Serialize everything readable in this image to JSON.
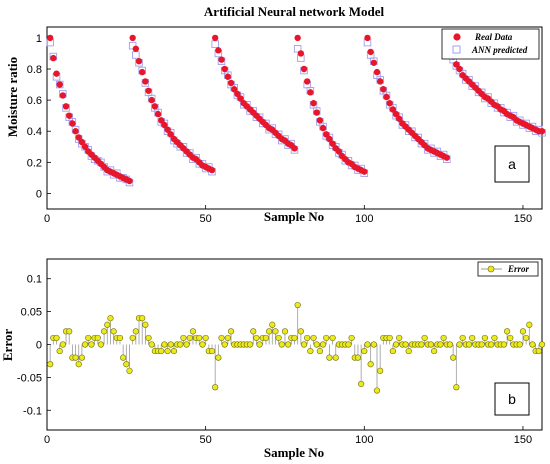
{
  "chart_data": [
    {
      "type": "scatter",
      "title": "Artificial Neural network Model",
      "xlabel": "Sample No",
      "ylabel": "Moisture ratio",
      "xlim": [
        0,
        156
      ],
      "ylim": [
        -0.1,
        1.07
      ],
      "xticks": [
        0,
        50,
        100,
        150
      ],
      "yticks": [
        0,
        0.2,
        0.4,
        0.6,
        0.8,
        1
      ],
      "legend_position": "top-right",
      "panel_label": "a",
      "colors": {
        "real": "#e8162a",
        "ann": "#9f9ff0"
      },
      "series": [
        {
          "name": "Real Data",
          "x": [
            1,
            2,
            3,
            4,
            5,
            6,
            7,
            8,
            9,
            10,
            11,
            12,
            13,
            14,
            15,
            16,
            17,
            18,
            19,
            20,
            21,
            22,
            23,
            24,
            25,
            26,
            27,
            28,
            29,
            30,
            31,
            32,
            33,
            34,
            35,
            36,
            37,
            38,
            39,
            40,
            41,
            42,
            43,
            44,
            45,
            46,
            47,
            48,
            49,
            50,
            51,
            52,
            53,
            54,
            55,
            56,
            57,
            58,
            59,
            60,
            61,
            62,
            63,
            64,
            65,
            66,
            67,
            68,
            69,
            70,
            71,
            72,
            73,
            74,
            75,
            76,
            77,
            78,
            79,
            80,
            81,
            82,
            83,
            84,
            85,
            86,
            87,
            88,
            89,
            90,
            91,
            92,
            93,
            94,
            95,
            96,
            97,
            98,
            99,
            100,
            101,
            102,
            103,
            104,
            105,
            106,
            107,
            108,
            109,
            110,
            111,
            112,
            113,
            114,
            115,
            116,
            117,
            118,
            119,
            120,
            121,
            122,
            123,
            124,
            125,
            126,
            127,
            128,
            129,
            130,
            131,
            132,
            133,
            134,
            135,
            136,
            137,
            138,
            139,
            140,
            141,
            142,
            143,
            144,
            145,
            146,
            147,
            148,
            149,
            150,
            151,
            152,
            153,
            154,
            155,
            156
          ],
          "values": [
            1.0,
            0.87,
            0.77,
            0.7,
            0.63,
            0.56,
            0.5,
            0.45,
            0.4,
            0.36,
            0.33,
            0.3,
            0.27,
            0.25,
            0.23,
            0.21,
            0.19,
            0.17,
            0.15,
            0.14,
            0.13,
            0.12,
            0.11,
            0.1,
            0.09,
            0.08,
            1.0,
            0.93,
            0.85,
            0.78,
            0.72,
            0.66,
            0.6,
            0.56,
            0.51,
            0.47,
            0.44,
            0.41,
            0.38,
            0.35,
            0.33,
            0.31,
            0.29,
            0.27,
            0.25,
            0.23,
            0.22,
            0.2,
            0.18,
            0.17,
            0.16,
            0.15,
            1.0,
            0.92,
            0.86,
            0.8,
            0.75,
            0.71,
            0.67,
            0.64,
            0.61,
            0.58,
            0.56,
            0.54,
            0.52,
            0.5,
            0.48,
            0.46,
            0.44,
            0.42,
            0.41,
            0.39,
            0.37,
            0.35,
            0.34,
            0.32,
            0.31,
            0.29,
            1.0,
            0.9,
            0.8,
            0.72,
            0.65,
            0.58,
            0.52,
            0.47,
            0.42,
            0.38,
            0.35,
            0.32,
            0.29,
            0.27,
            0.24,
            0.22,
            0.2,
            0.19,
            0.17,
            0.16,
            0.15,
            0.14,
            1.0,
            0.91,
            0.84,
            0.78,
            0.72,
            0.67,
            0.62,
            0.58,
            0.54,
            0.51,
            0.48,
            0.45,
            0.43,
            0.41,
            0.39,
            0.37,
            0.35,
            0.33,
            0.31,
            0.29,
            0.28,
            0.27,
            0.26,
            0.25,
            0.24,
            0.23,
            0.96,
            0.88,
            0.83,
            0.8,
            0.76,
            0.74,
            0.72,
            0.7,
            0.68,
            0.66,
            0.64,
            0.62,
            0.61,
            0.59,
            0.57,
            0.56,
            0.54,
            0.53,
            0.51,
            0.5,
            0.49,
            0.47,
            0.46,
            0.45,
            0.44,
            0.43,
            0.42,
            0.41,
            0.4,
            0.4
          ]
        },
        {
          "name": "ANN predicted",
          "x": [
            1,
            2,
            3,
            4,
            5,
            6,
            7,
            8,
            9,
            10,
            11,
            12,
            13,
            14,
            15,
            16,
            17,
            18,
            19,
            20,
            21,
            22,
            23,
            24,
            25,
            26,
            27,
            28,
            29,
            30,
            31,
            32,
            33,
            34,
            35,
            36,
            37,
            38,
            39,
            40,
            41,
            42,
            43,
            44,
            45,
            46,
            47,
            48,
            49,
            50,
            51,
            52,
            53,
            54,
            55,
            56,
            57,
            58,
            59,
            60,
            61,
            62,
            63,
            64,
            65,
            66,
            67,
            68,
            69,
            70,
            71,
            72,
            73,
            74,
            75,
            76,
            77,
            78,
            79,
            80,
            81,
            82,
            83,
            84,
            85,
            86,
            87,
            88,
            89,
            90,
            91,
            92,
            93,
            94,
            95,
            96,
            97,
            98,
            99,
            100,
            101,
            102,
            103,
            104,
            105,
            106,
            107,
            108,
            109,
            110,
            111,
            112,
            113,
            114,
            115,
            116,
            117,
            118,
            119,
            120,
            121,
            122,
            123,
            124,
            125,
            126,
            127,
            128,
            129,
            130,
            131,
            132,
            133,
            134,
            135,
            136,
            137,
            138,
            139,
            140,
            141,
            142,
            143,
            144,
            145,
            146,
            147,
            148,
            149,
            150,
            151,
            152,
            153,
            154,
            155,
            156
          ],
          "values": [
            0.97,
            0.88,
            0.75,
            0.7,
            0.64,
            0.55,
            0.49,
            0.46,
            0.41,
            0.35,
            0.32,
            0.3,
            0.28,
            0.24,
            0.22,
            0.21,
            0.2,
            0.17,
            0.14,
            0.15,
            0.12,
            0.13,
            0.1,
            0.1,
            0.09,
            0.07,
            0.95,
            0.89,
            0.84,
            0.79,
            0.71,
            0.65,
            0.61,
            0.55,
            0.52,
            0.46,
            0.45,
            0.4,
            0.39,
            0.34,
            0.32,
            0.3,
            0.3,
            0.26,
            0.26,
            0.22,
            0.23,
            0.19,
            0.19,
            0.16,
            0.17,
            0.14,
            0.96,
            0.9,
            0.85,
            0.79,
            0.76,
            0.7,
            0.68,
            0.63,
            0.62,
            0.57,
            0.57,
            0.53,
            0.53,
            0.49,
            0.49,
            0.45,
            0.45,
            0.41,
            0.42,
            0.38,
            0.38,
            0.34,
            0.35,
            0.31,
            0.32,
            0.28,
            0.93,
            0.87,
            0.79,
            0.7,
            0.66,
            0.57,
            0.53,
            0.46,
            0.43,
            0.37,
            0.36,
            0.31,
            0.3,
            0.26,
            0.25,
            0.21,
            0.21,
            0.18,
            0.18,
            0.15,
            0.16,
            0.13,
            0.97,
            0.89,
            0.85,
            0.76,
            0.73,
            0.66,
            0.63,
            0.57,
            0.55,
            0.5,
            0.49,
            0.44,
            0.44,
            0.4,
            0.4,
            0.36,
            0.36,
            0.32,
            0.32,
            0.28,
            0.29,
            0.26,
            0.27,
            0.24,
            0.25,
            0.22,
            0.9,
            0.86,
            0.82,
            0.79,
            0.77,
            0.73,
            0.73,
            0.69,
            0.69,
            0.65,
            0.65,
            0.61,
            0.62,
            0.58,
            0.58,
            0.55,
            0.55,
            0.52,
            0.52,
            0.49,
            0.5,
            0.46,
            0.47,
            0.44,
            0.45,
            0.42,
            0.43,
            0.4,
            0.41,
            0.39
          ]
        }
      ]
    },
    {
      "type": "scatter",
      "title": "",
      "xlabel": "Sample No",
      "ylabel": "Error",
      "xlim": [
        0,
        156
      ],
      "ylim": [
        -0.13,
        0.13
      ],
      "xticks": [
        0,
        50,
        100,
        150
      ],
      "yticks": [
        -0.1,
        -0.05,
        0,
        0.05,
        0.1
      ],
      "ytick_labels": [
        "-0.1",
        "-0.05",
        "0",
        "0.05",
        "0.1"
      ],
      "legend_position": "top-right",
      "panel_label": "b",
      "colors": {
        "marker": "#ecea1c",
        "stem": "#9a9a9a"
      },
      "series": [
        {
          "name": "Error",
          "x": [
            1,
            2,
            3,
            4,
            5,
            6,
            7,
            8,
            9,
            10,
            11,
            12,
            13,
            14,
            15,
            16,
            17,
            18,
            19,
            20,
            21,
            22,
            23,
            24,
            25,
            26,
            27,
            28,
            29,
            30,
            31,
            32,
            33,
            34,
            35,
            36,
            37,
            38,
            39,
            40,
            41,
            42,
            43,
            44,
            45,
            46,
            47,
            48,
            49,
            50,
            51,
            52,
            53,
            54,
            55,
            56,
            57,
            58,
            59,
            60,
            61,
            62,
            63,
            64,
            65,
            66,
            67,
            68,
            69,
            70,
            71,
            72,
            73,
            74,
            75,
            76,
            77,
            78,
            79,
            80,
            81,
            82,
            83,
            84,
            85,
            86,
            87,
            88,
            89,
            90,
            91,
            92,
            93,
            94,
            95,
            96,
            97,
            98,
            99,
            100,
            101,
            102,
            103,
            104,
            105,
            106,
            107,
            108,
            109,
            110,
            111,
            112,
            113,
            114,
            115,
            116,
            117,
            118,
            119,
            120,
            121,
            122,
            123,
            124,
            125,
            126,
            127,
            128,
            129,
            130,
            131,
            132,
            133,
            134,
            135,
            136,
            137,
            138,
            139,
            140,
            141,
            142,
            143,
            144,
            145,
            146,
            147,
            148,
            149,
            150,
            151,
            152,
            153,
            154,
            155,
            156
          ],
          "values": [
            -0.03,
            0.01,
            0.01,
            -0.01,
            0.0,
            0.02,
            0.02,
            -0.02,
            -0.02,
            -0.03,
            -0.02,
            0.0,
            0.01,
            0.0,
            0.01,
            0.01,
            0.0,
            0.02,
            0.03,
            0.04,
            0.02,
            0.01,
            0.01,
            -0.02,
            -0.03,
            -0.04,
            0.01,
            0.02,
            0.04,
            0.04,
            0.03,
            0.01,
            0.0,
            -0.01,
            -0.01,
            -0.01,
            0.0,
            -0.01,
            0.0,
            -0.01,
            0.0,
            0.0,
            0.01,
            0.0,
            0.01,
            0.02,
            0.01,
            0.01,
            0.0,
            0.01,
            -0.01,
            -0.01,
            -0.065,
            -0.02,
            0.01,
            0.0,
            0.01,
            0.02,
            0.0,
            0.0,
            0.0,
            0.0,
            0.0,
            0.0,
            0.02,
            0.01,
            0.0,
            0.01,
            0.01,
            0.02,
            0.03,
            0.02,
            0.01,
            0.0,
            0.02,
            0.0,
            0.01,
            0.01,
            0.06,
            0.02,
            0.0,
            0.01,
            -0.01,
            0.01,
            0.0,
            -0.01,
            0.0,
            0.01,
            -0.02,
            0.01,
            -0.02,
            0.0,
            0.0,
            0.0,
            0.0,
            0.01,
            -0.02,
            -0.02,
            -0.06,
            -0.01,
            0.0,
            -0.03,
            0.0,
            -0.07,
            -0.04,
            0.01,
            0.01,
            0.01,
            -0.01,
            0.0,
            0.01,
            0.0,
            0.0,
            -0.01,
            0.0,
            0.0,
            0.0,
            0.0,
            0.01,
            0.0,
            0.0,
            -0.01,
            0.0,
            0.0,
            0.01,
            0.0,
            0.0,
            -0.02,
            -0.065,
            0.0,
            0.01,
            0.0,
            0.0,
            0.01,
            0.0,
            0.0,
            0.0,
            0.01,
            0.0,
            0.0,
            0.01,
            0.0,
            0.0,
            0.0,
            0.02,
            0.01,
            0.0,
            0.0,
            0.0,
            0.02,
            0.01,
            0.03,
            0.0,
            -0.01,
            -0.01,
            0.0
          ]
        }
      ]
    }
  ]
}
